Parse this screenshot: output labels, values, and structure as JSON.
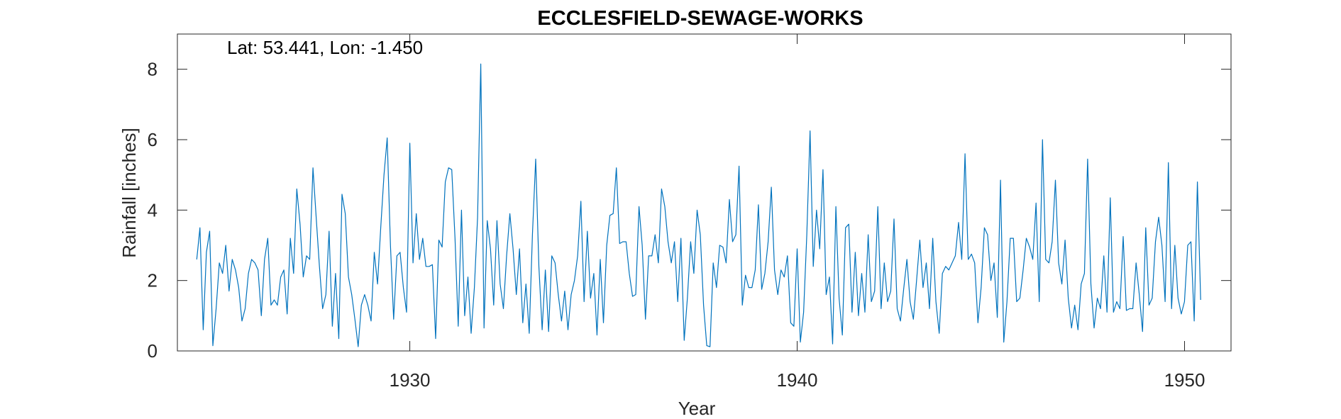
{
  "chart_data": {
    "type": "line",
    "title": "ECCLESFIELD-SEWAGE-WORKS",
    "xlabel": "Year",
    "ylabel": "Rainfall [inches]",
    "annotation": "Lat: 53.441, Lon: -1.450",
    "xlim": [
      1924,
      1951.2
    ],
    "ylim": [
      0,
      9
    ],
    "xticks": [
      1930,
      1940,
      1950
    ],
    "yticks": [
      0,
      2,
      4,
      6,
      8
    ],
    "grid": false,
    "x_start": 1924.5,
    "x_step": 0.08333,
    "series": [
      {
        "color": "#0072BD",
        "values": [
          2.6,
          3.5,
          0.6,
          2.8,
          3.4,
          0.15,
          1.2,
          2.5,
          2.2,
          3.0,
          1.7,
          2.6,
          2.3,
          1.8,
          0.85,
          1.2,
          2.2,
          2.6,
          2.5,
          2.3,
          1.0,
          2.6,
          3.2,
          1.3,
          1.45,
          1.3,
          2.1,
          2.3,
          1.05,
          3.2,
          2.2,
          4.6,
          3.6,
          2.1,
          2.7,
          2.6,
          5.2,
          3.8,
          2.4,
          1.2,
          1.6,
          3.4,
          0.7,
          2.2,
          0.35,
          4.45,
          3.9,
          2.1,
          1.6,
          0.9,
          0.12,
          1.3,
          1.6,
          1.3,
          0.85,
          2.8,
          1.9,
          3.5,
          5.0,
          6.05,
          3.0,
          0.9,
          2.7,
          2.8,
          1.8,
          1.1,
          5.9,
          2.5,
          3.9,
          2.6,
          3.2,
          2.4,
          2.4,
          2.45,
          0.35,
          3.15,
          2.95,
          4.8,
          5.2,
          5.15,
          3.2,
          0.7,
          4.0,
          1.0,
          2.1,
          0.5,
          1.8,
          3.8,
          8.15,
          0.65,
          3.7,
          2.9,
          1.3,
          3.7,
          1.9,
          1.2,
          2.7,
          3.9,
          2.9,
          1.6,
          2.9,
          0.8,
          1.9,
          0.5,
          3.3,
          5.45,
          2.4,
          0.6,
          2.3,
          0.55,
          2.7,
          2.5,
          1.6,
          0.85,
          1.7,
          0.6,
          1.6,
          2.0,
          2.7,
          4.25,
          1.4,
          3.4,
          1.5,
          2.2,
          0.45,
          2.6,
          0.8,
          3.0,
          3.85,
          3.9,
          5.2,
          3.05,
          3.1,
          3.1,
          2.2,
          1.55,
          1.6,
          4.1,
          3.0,
          0.9,
          2.7,
          2.7,
          3.3,
          2.5,
          4.6,
          4.1,
          3.1,
          2.5,
          3.1,
          1.4,
          3.2,
          0.3,
          1.5,
          3.1,
          2.2,
          4.0,
          3.3,
          1.3,
          0.15,
          0.12,
          2.5,
          1.8,
          3.0,
          2.95,
          2.5,
          4.3,
          3.1,
          3.3,
          5.25,
          1.3,
          2.15,
          1.8,
          1.8,
          2.3,
          4.15,
          1.75,
          2.2,
          3.1,
          4.65,
          2.3,
          1.6,
          2.3,
          2.1,
          2.7,
          0.8,
          0.7,
          2.9,
          0.25,
          1.1,
          3.3,
          6.25,
          2.4,
          4.0,
          2.9,
          5.15,
          1.6,
          2.1,
          0.2,
          4.1,
          1.5,
          0.45,
          3.5,
          3.6,
          1.1,
          2.8,
          1.0,
          2.2,
          1.1,
          3.3,
          1.4,
          1.7,
          4.1,
          1.2,
          2.5,
          1.4,
          1.7,
          3.75,
          1.2,
          0.85,
          1.75,
          2.6,
          1.4,
          0.9,
          2.0,
          3.15,
          1.8,
          2.5,
          1.2,
          3.2,
          1.4,
          0.5,
          2.2,
          2.4,
          2.3,
          2.5,
          2.7,
          3.65,
          2.6,
          5.6,
          2.6,
          2.75,
          2.5,
          0.8,
          1.8,
          3.5,
          3.3,
          2.0,
          2.5,
          0.95,
          4.85,
          0.25,
          1.4,
          3.2,
          3.2,
          1.4,
          1.5,
          2.3,
          3.2,
          2.95,
          2.6,
          4.2,
          1.4,
          6.0,
          2.6,
          2.5,
          3.1,
          4.85,
          2.5,
          1.9,
          3.15,
          1.5,
          0.65,
          1.3,
          0.6,
          1.9,
          2.2,
          5.45,
          1.9,
          0.65,
          1.5,
          1.2,
          2.7,
          1.1,
          4.35,
          1.1,
          1.4,
          1.2,
          3.25,
          1.15,
          1.2,
          1.2,
          2.5,
          1.6,
          0.55,
          3.5,
          1.3,
          1.5,
          3.1,
          3.8,
          3.0,
          1.4,
          5.35,
          1.2,
          3.0,
          1.5,
          1.05,
          1.4,
          3.0,
          3.1,
          0.85,
          4.8,
          1.45
        ]
      }
    ]
  }
}
